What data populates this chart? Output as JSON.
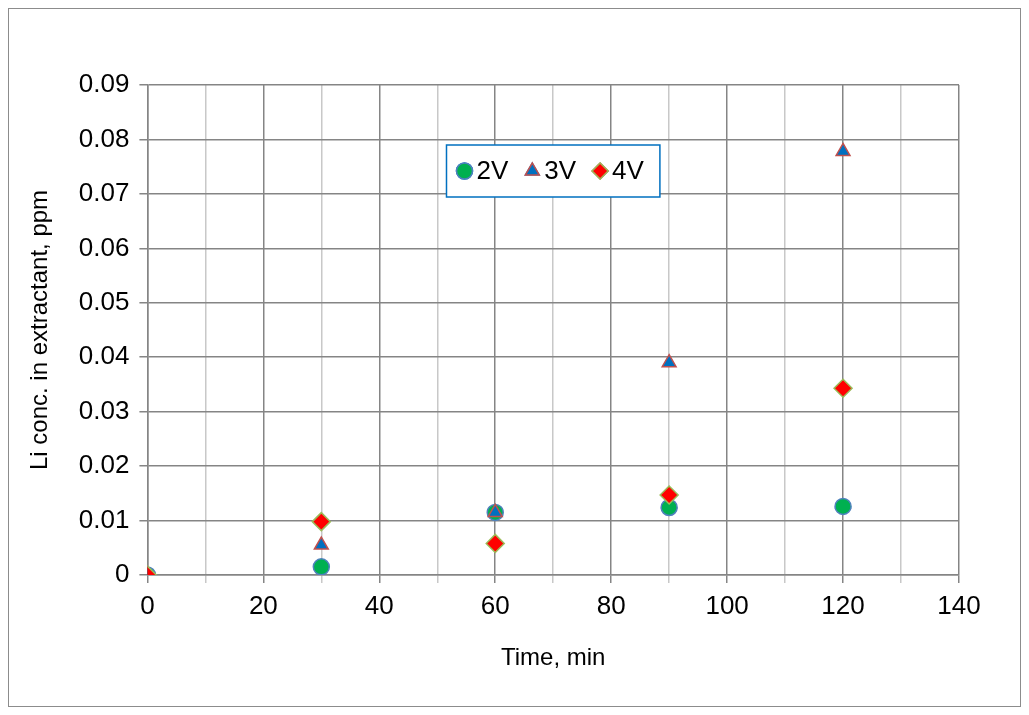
{
  "chart_data": {
    "type": "scatter",
    "xlabel": "Time, min",
    "ylabel": "Li conc. in extractant, ppm",
    "x": [
      0,
      30,
      60,
      90,
      120
    ],
    "series": [
      {
        "name": "2V",
        "color": "#00b050",
        "marker": "circle",
        "values": [
          0,
          0.0015,
          0.0115,
          0.0124,
          0.0126
        ]
      },
      {
        "name": "3V",
        "color": "#0070c0",
        "marker": "triangle",
        "values": [
          0,
          0.0055,
          0.0115,
          0.039,
          0.0778
        ]
      },
      {
        "name": "4V",
        "color": "#ff0000",
        "marker": "diamond",
        "values": [
          0,
          0.0098,
          0.0058,
          0.0147,
          0.0343
        ]
      }
    ],
    "xlim": [
      0,
      140
    ],
    "xticks": [
      0,
      {
        "value": 10,
        "label": null
      },
      20,
      {
        "value": 30,
        "label": null
      },
      40,
      {
        "value": 50,
        "label": null
      },
      60,
      {
        "value": 70,
        "label": null
      },
      80,
      {
        "value": 90,
        "label": null
      },
      100,
      {
        "value": 110,
        "label": null
      },
      120,
      {
        "value": 130,
        "label": null
      },
      140
    ],
    "ylim": [
      0,
      0.09
    ],
    "yticks": [
      0,
      0.01,
      0.02,
      0.03,
      0.04,
      0.05,
      0.06,
      0.07,
      0.08,
      0.09
    ],
    "grid": true,
    "legend": "top"
  }
}
